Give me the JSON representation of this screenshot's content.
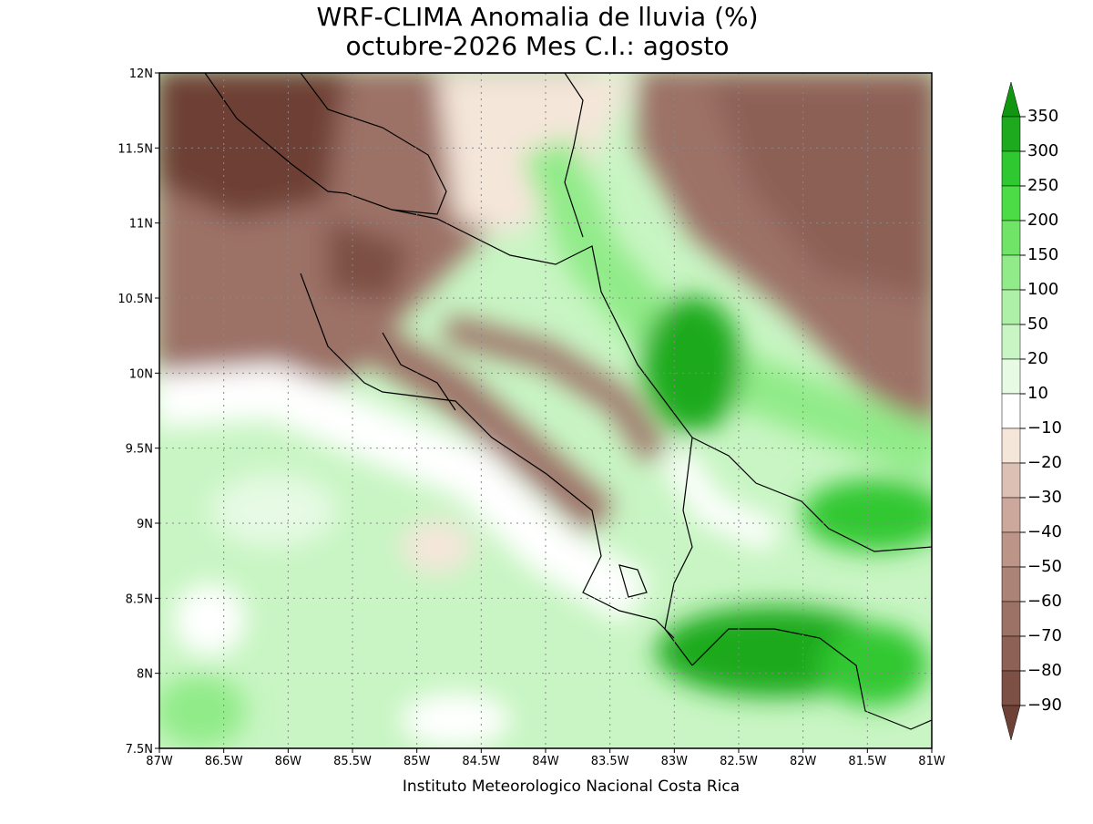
{
  "header": {
    "title": "WRF-CLIMA Anomalia de lluvia (%)",
    "subtitle": "octubre-2026 Mes C.I.: agosto"
  },
  "map": {
    "x_labels": [
      "87W",
      "86.5W",
      "86W",
      "85.5W",
      "85W",
      "84.5W",
      "84W",
      "83.5W",
      "83W",
      "82.5W",
      "82W",
      "81.5W",
      "81W"
    ],
    "y_labels": [
      "12N",
      "11.5N",
      "11N",
      "10.5N",
      "10N",
      "9.5N",
      "9N",
      "8.5N",
      "8N",
      "7.5N"
    ]
  },
  "colorbar": {
    "labels": [
      "350",
      "300",
      "250",
      "200",
      "150",
      "100",
      "50",
      "20",
      "10",
      "−10",
      "−20",
      "−30",
      "−40",
      "−50",
      "−60",
      "−70",
      "−80",
      "−90"
    ],
    "colors": [
      "#129612",
      "#1eaa1e",
      "#30c830",
      "#4bdc46",
      "#6fe466",
      "#91eb88",
      "#aff0a8",
      "#c8f5c3",
      "#e6fae4",
      "#ffffff",
      "#f5e6da",
      "#dcc0b4",
      "#cca89c",
      "#bc9588",
      "#ac8377",
      "#9c7166",
      "#8d6156",
      "#7d5045",
      "#6e4136"
    ]
  },
  "footer": {
    "credit": "Instituto Meteorologico Nacional Costa Rica"
  }
}
